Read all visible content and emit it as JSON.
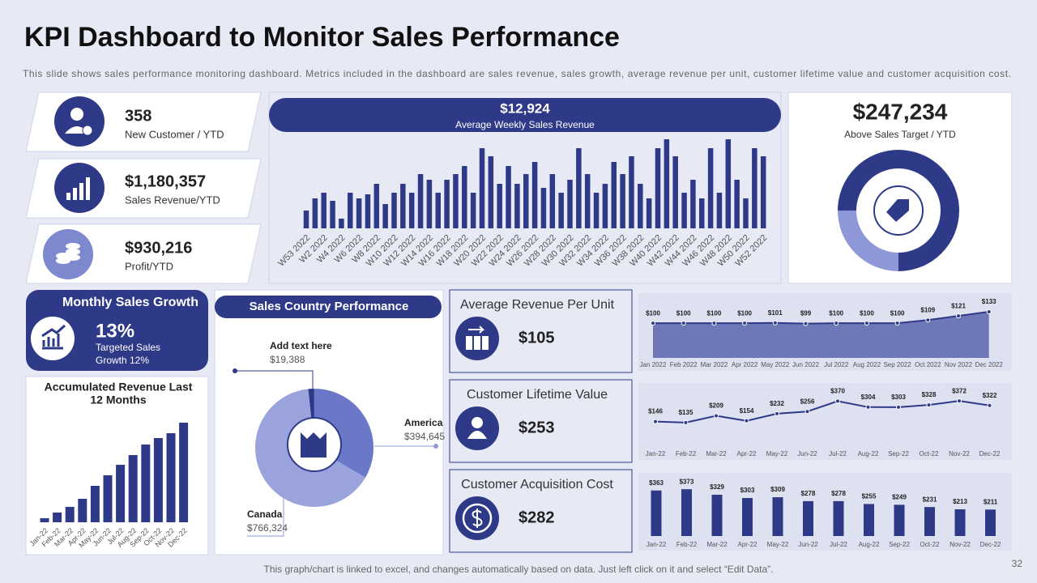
{
  "title": "KPI Dashboard to Monitor Sales Performance",
  "subtitle": "This slide shows sales performance  monitoring dashboard. Metrics included in the dashboard are sales revenue,  sales growth, average  revenue  per unit, customer lifetime value  and customer acquisition cost.",
  "kpis": [
    {
      "value": "358",
      "label": "New Customer  / YTD"
    },
    {
      "value": "$1,180,357",
      "label": "Sales Revenue/YTD"
    },
    {
      "value": "$930,216",
      "label": "Profit/YTD"
    }
  ],
  "monthly_growth": {
    "title": "Monthly Sales Growth",
    "value": "13%",
    "label": [
      "Targeted Sales",
      "Growth 12%"
    ]
  },
  "metrics": [
    {
      "title": "Average Revenue  Per Unit",
      "value": "$105"
    },
    {
      "title": "Customer  Lifetime Value",
      "value": "$253"
    },
    {
      "title": "Customer Acquisition Cost",
      "value": "$282"
    }
  ],
  "footer": "This graph/chart is linked to excel, and changes automatically based on data. Just left click on it and select “Edit Data”.",
  "page_number": "32",
  "chart_data": [
    {
      "type": "bar",
      "title": "$12,924",
      "subtitle": "Average  Weekly Sales Revenue",
      "categories": [
        "W53 2022",
        null,
        "W2 2022",
        null,
        "W4 2022",
        null,
        "W6 2022",
        null,
        "W8 2022",
        null,
        "W10 2022",
        null,
        "W12 2022",
        null,
        "W14 2022",
        null,
        "W16 2022",
        null,
        "W18 2022",
        null,
        "W20 2022",
        null,
        "W22 2022",
        null,
        "W24 2022",
        null,
        "W26 2022",
        null,
        "W28 2022",
        null,
        "W30 2022",
        null,
        "W32 2022",
        null,
        "W34 2022",
        null,
        "W36 2022",
        null,
        "W38 2022",
        null,
        "W40 2022",
        null,
        "W42 2022",
        null,
        "W44 2022",
        null,
        "W46 2022",
        null,
        "W48 2022",
        null,
        "W50 2022",
        null,
        "W52 2022"
      ],
      "values": [
        22,
        37,
        44,
        34,
        12,
        44,
        37,
        42,
        55,
        30,
        44,
        55,
        44,
        67,
        60,
        44,
        60,
        67,
        77,
        44,
        99,
        89,
        55,
        77,
        55,
        67,
        82,
        50,
        67,
        44,
        60,
        99,
        67,
        44,
        55,
        82,
        67,
        89,
        55,
        37,
        99,
        110,
        89,
        44,
        60,
        37,
        99,
        44,
        110,
        60,
        37,
        99,
        89
      ],
      "ylim": [
        0,
        115
      ],
      "color": "#2e3a87"
    },
    {
      "type": "pie",
      "title": "$247,234",
      "subtitle": "Above Sales Target  / YTD",
      "values": [
        75,
        25
      ],
      "colors": [
        "#2e3a87",
        "#8e98d8"
      ]
    },
    {
      "type": "bar",
      "title": [
        "Accumulated Revenue Last",
        "12 Months"
      ],
      "categories": [
        "Jan-22",
        "Feb-22",
        "Mar-22",
        "Apr-22",
        "May-22",
        "Jun-22",
        "Jul-22",
        "Aug-22",
        "Sep-22",
        "Oct-22",
        "Nov-22",
        "Dec-22"
      ],
      "values": [
        5,
        12,
        19,
        29,
        45,
        58,
        71,
        83,
        96,
        104,
        110,
        123
      ],
      "ylim": [
        0,
        130
      ],
      "color": "#2e3a87"
    },
    {
      "type": "pie",
      "title": "Sales Country Performance",
      "categories": [
        "Add text here",
        "America",
        "Canada"
      ],
      "values": [
        19388,
        394645,
        766324
      ],
      "value_labels": [
        "$19,388",
        "$394,645",
        "$766,324"
      ],
      "colors": [
        "#2e3a87",
        "#6b78c8",
        "#9aa3dc"
      ]
    },
    {
      "type": "area",
      "categories": [
        "Jan 2022",
        "Feb 2022",
        "Mar 2022",
        "Apr 2022",
        "May 2022",
        "Jun 2022",
        "Jul 2022",
        "Aug 2022",
        "Sep 2022",
        "Oct 2022",
        "Nov 2022",
        "Dec 2022"
      ],
      "values": [
        100,
        100,
        100,
        100,
        101,
        99,
        100,
        100,
        100,
        109,
        121,
        133
      ],
      "value_labels": [
        "$100",
        "$100",
        "$100",
        "$100",
        "$101",
        "$99",
        "$100",
        "$100",
        "$100",
        "$109",
        "$121",
        "$133"
      ],
      "ylim": [
        0,
        140
      ],
      "color": "#2e3a87",
      "fill": "#6e78b8"
    },
    {
      "type": "line",
      "categories": [
        "Jan-22",
        "Feb-22",
        "Mar-22",
        "Apr-22",
        "May-22",
        "Jun-22",
        "Jul-22",
        "Aug-22",
        "Sep-22",
        "Oct-22",
        "Nov-22",
        "Dec-22"
      ],
      "values": [
        146,
        135,
        209,
        154,
        232,
        256,
        370,
        304,
        303,
        328,
        372,
        322
      ],
      "value_labels": [
        "$146",
        "$135",
        "$209",
        "$154",
        "$232",
        "$256",
        "$370",
        "$304",
        "$303",
        "$328",
        "$372",
        "$322"
      ],
      "ylim": [
        0,
        400
      ],
      "color": "#2e3a87"
    },
    {
      "type": "bar",
      "categories": [
        "Jan-22",
        "Feb-22",
        "Mar-22",
        "Apr-22",
        "May-22",
        "Jun-22",
        "Jul-22",
        "Aug-22",
        "Sep-22",
        "Oct-22",
        "Nov-22",
        "Dec-22"
      ],
      "values": [
        363,
        373,
        329,
        303,
        309,
        278,
        278,
        255,
        249,
        231,
        213,
        211
      ],
      "value_labels": [
        "$363",
        "$373",
        "$329",
        "$303",
        "$309",
        "$278",
        "$278",
        "$255",
        "$249",
        "$231",
        "$213",
        "$211"
      ],
      "ylim": [
        0,
        400
      ],
      "color": "#2e3a87"
    }
  ]
}
